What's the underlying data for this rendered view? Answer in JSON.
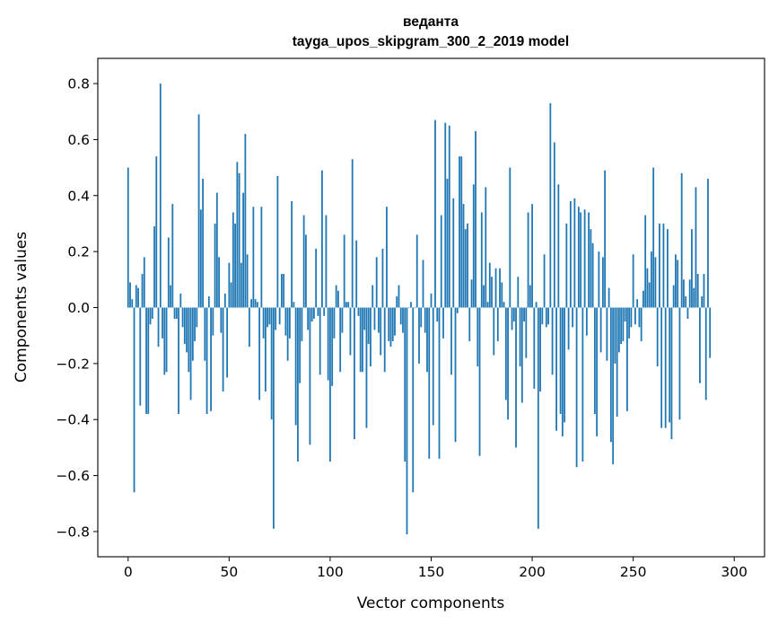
{
  "chart_data": {
    "type": "bar",
    "title": "веданта",
    "subtitle": "tayga_upos_skipgram_300_2_2019 model",
    "xlabel": "Vector components",
    "ylabel": "Components values",
    "xlim": [
      -15,
      315
    ],
    "ylim": [
      -0.89,
      0.89
    ],
    "x_ticks": [
      0,
      50,
      100,
      150,
      200,
      250,
      300
    ],
    "y_ticks": [
      -0.8,
      -0.6,
      -0.4,
      -0.2,
      0.0,
      0.2,
      0.4,
      0.6,
      0.8
    ],
    "x_tick_labels": [
      "0",
      "50",
      "100",
      "150",
      "200",
      "250",
      "300"
    ],
    "y_tick_labels": [
      "−0.8",
      "−0.6",
      "−0.4",
      "−0.2",
      "0.0",
      "0.2",
      "0.4",
      "0.6",
      "0.8"
    ],
    "bar_color": "#1f77b4",
    "values": [
      0.5,
      0.09,
      0.03,
      -0.66,
      0.08,
      0.07,
      -0.35,
      0.12,
      0.18,
      -0.38,
      -0.38,
      -0.06,
      -0.04,
      0.29,
      0.54,
      -0.14,
      0.8,
      -0.11,
      -0.24,
      -0.23,
      0.25,
      0.08,
      0.37,
      -0.04,
      -0.04,
      -0.38,
      0.05,
      -0.07,
      -0.13,
      -0.16,
      -0.23,
      -0.33,
      -0.19,
      -0.12,
      -0.07,
      0.69,
      0.35,
      0.46,
      -0.19,
      -0.38,
      0.04,
      -0.37,
      -0.1,
      0.3,
      0.41,
      0.18,
      -0.09,
      -0.3,
      0.05,
      -0.25,
      0.16,
      0.09,
      0.34,
      0.3,
      0.52,
      0.48,
      0.16,
      0.41,
      0.62,
      0.19,
      -0.14,
      0.03,
      0.36,
      0.03,
      0.02,
      -0.33,
      0.36,
      -0.11,
      -0.3,
      -0.07,
      -0.06,
      -0.4,
      -0.79,
      -0.08,
      0.47,
      -0.06,
      0.12,
      0.12,
      -0.1,
      -0.19,
      -0.11,
      0.38,
      0.02,
      -0.42,
      -0.55,
      -0.27,
      -0.12,
      0.33,
      0.26,
      -0.08,
      -0.49,
      -0.05,
      -0.04,
      0.21,
      -0.03,
      -0.24,
      0.49,
      -0.03,
      0.33,
      -0.26,
      -0.55,
      -0.28,
      -0.11,
      0.08,
      0.06,
      -0.23,
      -0.09,
      0.26,
      0.02,
      0.02,
      -0.17,
      0.53,
      -0.47,
      0.24,
      -0.03,
      -0.23,
      -0.23,
      -0.08,
      -0.43,
      -0.13,
      -0.21,
      0.08,
      -0.08,
      0.18,
      -0.09,
      -0.17,
      0.21,
      -0.23,
      0.36,
      -0.12,
      -0.14,
      -0.12,
      -0.1,
      0.04,
      0.08,
      -0.06,
      -0.09,
      -0.55,
      -0.81,
      0.0,
      0.02,
      -0.66,
      0.0,
      0.26,
      -0.2,
      -0.07,
      0.17,
      -0.09,
      -0.23,
      -0.54,
      0.05,
      -0.42,
      0.67,
      -0.05,
      -0.54,
      0.33,
      -0.11,
      0.66,
      0.46,
      0.65,
      -0.24,
      0.39,
      -0.48,
      -0.02,
      0.54,
      0.54,
      0.37,
      0.28,
      0.3,
      -0.12,
      0.1,
      0.44,
      0.63,
      -0.21,
      -0.53,
      0.34,
      0.08,
      0.43,
      0.02,
      0.16,
      0.11,
      -0.17,
      0.14,
      -0.12,
      0.14,
      0.09,
      0.02,
      -0.33,
      -0.4,
      0.5,
      -0.08,
      -0.05,
      -0.5,
      0.11,
      -0.21,
      -0.34,
      -0.05,
      -0.18,
      0.34,
      0.08,
      0.37,
      -0.29,
      0.02,
      -0.79,
      -0.3,
      -0.06,
      0.19,
      -0.07,
      -0.06,
      0.73,
      -0.24,
      0.59,
      -0.44,
      0.44,
      -0.38,
      -0.46,
      -0.41,
      0.3,
      -0.15,
      0.38,
      -0.07,
      0.39,
      -0.57,
      0.36,
      0.34,
      -0.55,
      0.35,
      -0.1,
      0.34,
      0.28,
      0.23,
      -0.38,
      -0.46,
      0.2,
      -0.16,
      0.18,
      0.49,
      -0.19,
      0.07,
      -0.48,
      -0.56,
      -0.2,
      -0.39,
      -0.16,
      -0.13,
      -0.12,
      -0.05,
      -0.37,
      -0.11,
      -0.07,
      0.19,
      -0.06,
      0.03,
      -0.07,
      -0.12,
      0.06,
      0.33,
      0.14,
      0.09,
      0.2,
      0.5,
      0.18,
      -0.21,
      0.3,
      -0.43,
      0.3,
      -0.43,
      0.28,
      -0.41,
      -0.47,
      0.08,
      0.19,
      0.17,
      -0.4,
      0.48,
      0.1,
      0.04,
      -0.04,
      0.1,
      0.28,
      0.07,
      0.43,
      0.12,
      -0.27,
      0.04,
      0.12,
      -0.33,
      0.46,
      -0.18
    ],
    "grid": false
  }
}
